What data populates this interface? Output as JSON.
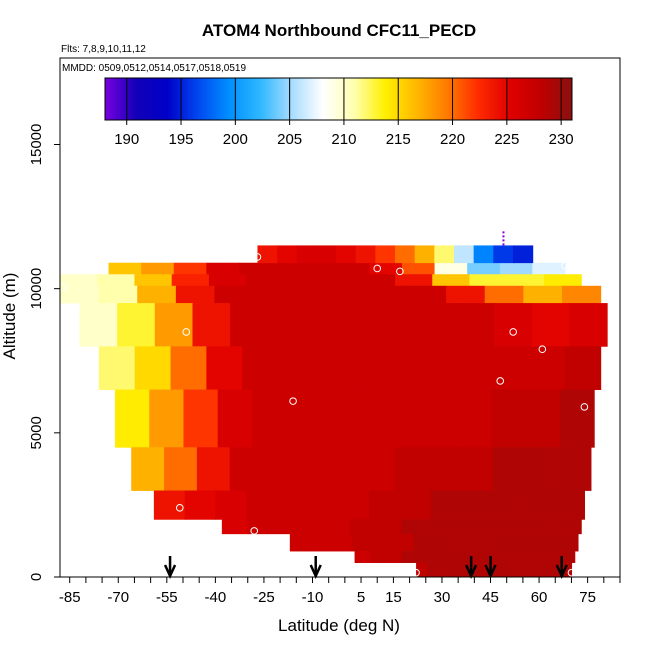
{
  "chart_data": {
    "type": "heatmap",
    "title": "ATOM4 Northbound CFC11_PECD",
    "annotations": [
      "Flts: 7,8,9,10,11,12",
      "MMDD: 0509,0512,0514,0517,0518,0519"
    ],
    "xlabel": "Latitude (deg N)",
    "ylabel": "Altitude (m)",
    "xlim": [
      -88,
      85
    ],
    "ylim": [
      0,
      18000
    ],
    "x_ticks": [
      -85,
      -70,
      -55,
      -40,
      -25,
      -10,
      5,
      15,
      30,
      45,
      60,
      75
    ],
    "y_ticks": [
      0,
      5000,
      10000,
      15000
    ],
    "colorbar": {
      "ticks": [
        190,
        195,
        200,
        205,
        210,
        215,
        220,
        225,
        230
      ],
      "range": [
        188,
        231
      ],
      "stops": [
        "#7a00e0",
        "#1200b8",
        "#0000c8",
        "#0048f0",
        "#0090ff",
        "#30b8ff",
        "#a8dcff",
        "#ffffff",
        "#ffffb0",
        "#fff000",
        "#ffb800",
        "#ff7a00",
        "#ff2a00",
        "#e00000",
        "#c00000",
        "#8a1010"
      ]
    },
    "profile_rows": [
      {
        "alt": [
          10500,
          10900
        ],
        "lat": [
          -73,
          68
        ],
        "values": [
          216,
          218,
          222,
          226,
          227,
          227,
          227,
          227,
          225,
          221,
          209,
          204,
          205,
          207
        ]
      },
      {
        "alt": [
          10100,
          10500
        ],
        "lat": [
          -88,
          73
        ],
        "values": [
          210,
          211,
          216,
          223,
          226,
          227,
          227,
          227,
          227,
          224,
          216,
          213,
          213,
          214
        ]
      },
      {
        "alt": [
          9500,
          10100
        ],
        "lat": [
          -88,
          79
        ],
        "values": [
          210,
          211,
          217,
          224,
          227,
          227,
          227,
          227,
          227,
          227,
          224,
          220,
          217,
          219
        ]
      },
      {
        "alt": [
          8000,
          9500
        ],
        "lat": [
          -82,
          81
        ],
        "values": [
          210,
          213,
          218,
          224,
          227,
          227,
          227,
          227,
          227,
          227,
          227,
          226,
          225,
          226
        ]
      },
      {
        "alt": [
          6500,
          8000
        ],
        "lat": [
          -76,
          79
        ],
        "values": [
          212,
          215,
          220,
          225,
          227,
          227,
          227,
          227,
          227,
          227,
          227,
          227,
          227,
          228
        ]
      },
      {
        "alt": [
          4500,
          6500
        ],
        "lat": [
          -71,
          77
        ],
        "values": [
          214,
          218,
          222,
          226,
          227,
          227,
          227,
          227,
          227,
          227,
          227,
          228,
          228,
          229
        ]
      },
      {
        "alt": [
          3000,
          4500
        ],
        "lat": [
          -66,
          76
        ],
        "values": [
          217,
          220,
          224,
          227,
          227,
          227,
          227,
          227,
          228,
          228,
          228,
          229,
          229,
          229
        ]
      },
      {
        "alt": [
          2000,
          3000
        ],
        "lat": [
          -59,
          74
        ],
        "values": [
          224,
          225,
          226,
          227,
          227,
          227,
          227,
          228,
          228,
          229,
          229,
          229,
          229,
          229
        ]
      },
      {
        "alt": [
          1500,
          2000
        ],
        "lat": [
          -38,
          73
        ],
        "values": [
          226,
          227,
          227,
          227,
          227,
          228,
          228,
          229,
          229,
          229,
          229,
          229,
          229,
          229
        ]
      },
      {
        "alt": [
          900,
          1500
        ],
        "lat": [
          -17,
          72
        ],
        "values": [
          227,
          227,
          227,
          228,
          228,
          228,
          229,
          229,
          229,
          229,
          229,
          229,
          229,
          229
        ]
      },
      {
        "alt": [
          500,
          900
        ],
        "lat": [
          3,
          71
        ],
        "values": [
          227,
          228,
          228,
          229,
          229,
          229,
          229,
          229,
          229,
          229,
          229,
          229,
          229,
          229
        ]
      },
      {
        "alt": [
          0,
          500
        ],
        "lat": [
          22,
          70
        ],
        "values": [
          228,
          229,
          229,
          229,
          229,
          229,
          229,
          229,
          229,
          229,
          229,
          229,
          229,
          229
        ]
      }
    ],
    "top_segment": {
      "alt": [
        10900,
        11500
      ],
      "lat": [
        -27,
        58
      ],
      "values": [
        224,
        225,
        226,
        226,
        225,
        224,
        222,
        220,
        217,
        212,
        206,
        199,
        196,
        195
      ]
    },
    "samples": [
      {
        "lat": -27,
        "alt": 11100
      },
      {
        "lat": 10,
        "alt": 10700
      },
      {
        "lat": 17,
        "alt": 10600
      },
      {
        "lat": 68,
        "alt": 10800
      },
      {
        "lat": -87,
        "alt": 10050
      },
      {
        "lat": -83,
        "alt": 9300
      },
      {
        "lat": 84,
        "alt": 9500
      },
      {
        "lat": -49,
        "alt": 8500
      },
      {
        "lat": 52,
        "alt": 8500
      },
      {
        "lat": 61,
        "alt": 7900
      },
      {
        "lat": 48,
        "alt": 6800
      },
      {
        "lat": -16,
        "alt": 6100
      },
      {
        "lat": 74,
        "alt": 5900
      },
      {
        "lat": -51,
        "alt": 2400
      },
      {
        "lat": -28,
        "alt": 1600
      },
      {
        "lat": 22,
        "alt": 150
      },
      {
        "lat": 70,
        "alt": 150
      }
    ],
    "marker_line": {
      "lat": 49,
      "alt": [
        11500,
        12000
      ]
    },
    "arrows_lat": [
      -54,
      -9,
      39,
      45,
      67
    ]
  }
}
